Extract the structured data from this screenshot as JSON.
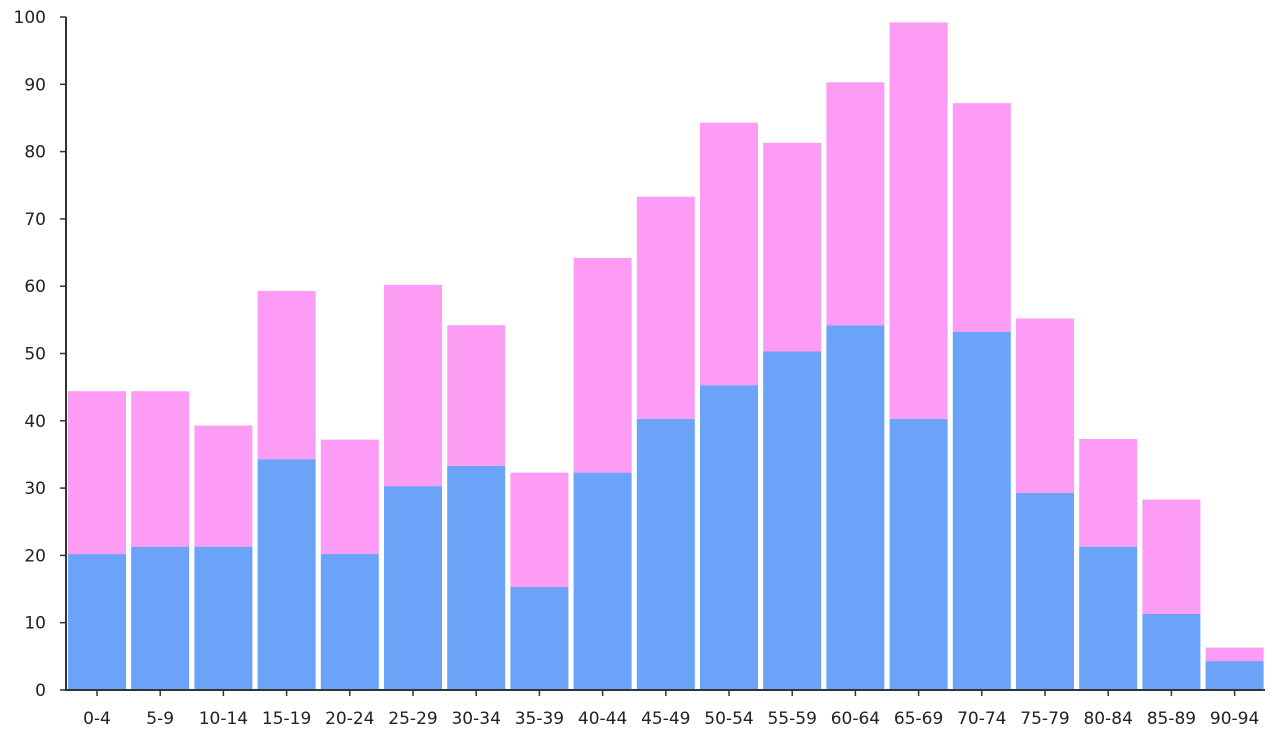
{
  "chart_data": {
    "type": "bar",
    "stacked": true,
    "categories": [
      "0-4",
      "5-9",
      "10-14",
      "15-19",
      "20-24",
      "25-29",
      "30-34",
      "35-39",
      "40-44",
      "45-49",
      "50-54",
      "55-59",
      "60-64",
      "65-69",
      "70-74",
      "75-79",
      "80-84",
      "85-89",
      "90-94"
    ],
    "series": [
      {
        "color": "#6aa3f7",
        "values": [
          20.2,
          21.3,
          21.3,
          34.3,
          20.2,
          30.3,
          33.3,
          15.3,
          32.3,
          40.3,
          45.3,
          50.3,
          54.2,
          40.3,
          53.2,
          29.3,
          21.3,
          11.3,
          4.3
        ]
      },
      {
        "color": "#fc9cf4",
        "values": [
          24.2,
          23.1,
          18.0,
          25.0,
          17.0,
          29.9,
          20.9,
          17.0,
          31.9,
          33.0,
          39.0,
          31.0,
          36.1,
          58.9,
          34.0,
          25.9,
          16.0,
          17.0,
          2.0
        ]
      }
    ],
    "ylim": [
      0,
      100
    ],
    "yticks": [
      "0",
      "10",
      "20",
      "30",
      "40",
      "50",
      "60",
      "70",
      "80",
      "90",
      "100"
    ],
    "grid": false,
    "legend": "none",
    "title": "",
    "xlabel": "",
    "ylabel": ""
  }
}
